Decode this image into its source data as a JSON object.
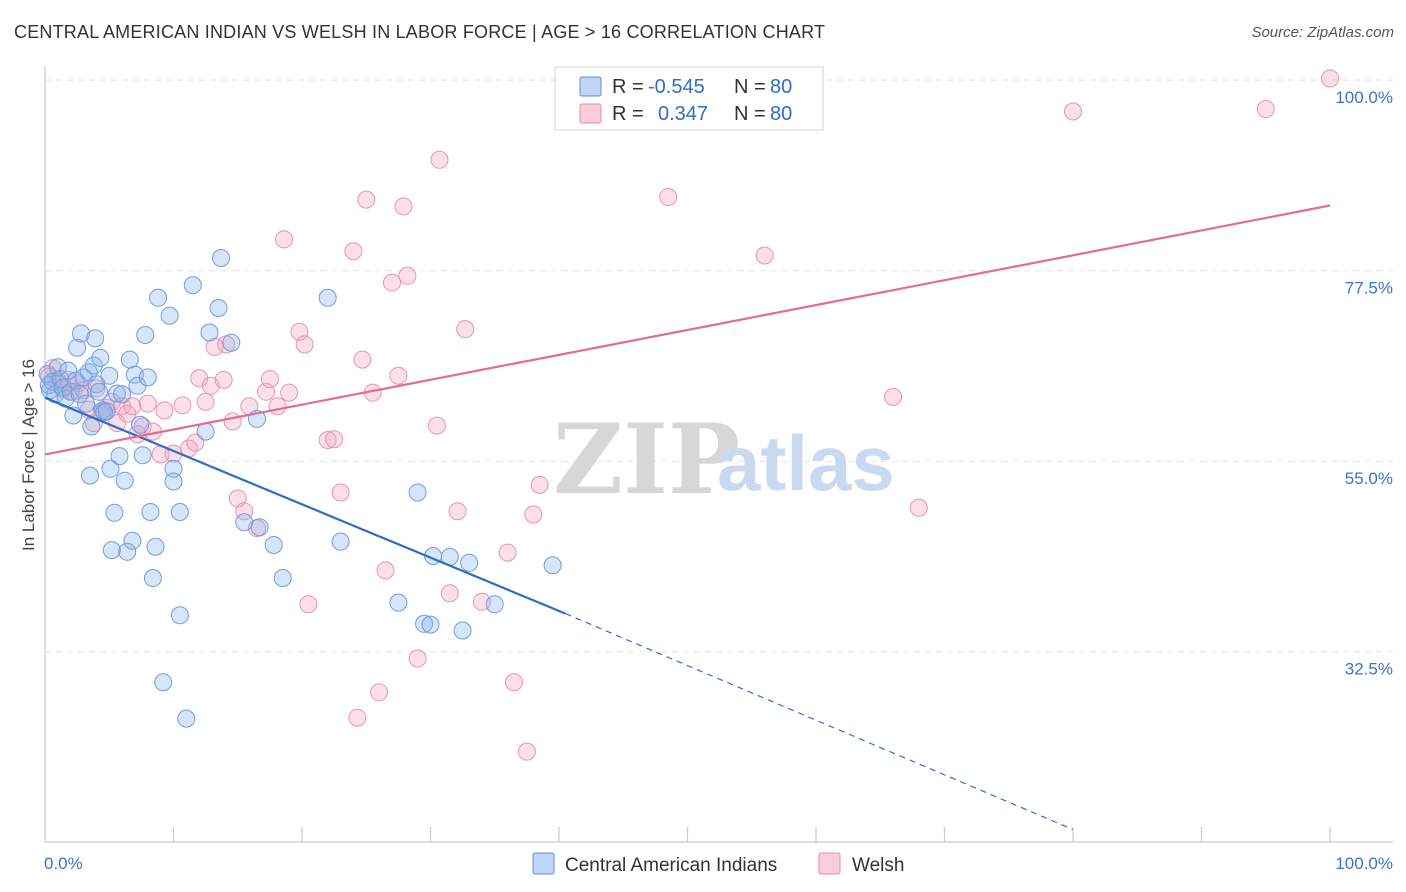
{
  "header": {
    "title": "CENTRAL AMERICAN INDIAN VS WELSH IN LABOR FORCE | AGE > 16 CORRELATION CHART",
    "source": "Source: ZipAtlas.com"
  },
  "watermark": {
    "zip": "ZIP",
    "atlas": "atlas"
  },
  "legend": {
    "rows": [
      {
        "r_label": "R =",
        "r_value": "-0.545",
        "n_label": "N =",
        "n_value": "80",
        "color": "#8db4ea"
      },
      {
        "r_label": "R =",
        "r_value": "0.347",
        "n_label": "N =",
        "n_value": "80",
        "color": "#f3a6c0"
      }
    ]
  },
  "bottom_legend": {
    "items": [
      {
        "label": "Central American Indians",
        "color": "#8db4ea"
      },
      {
        "label": "Welsh",
        "color": "#f3a6c0"
      }
    ]
  },
  "chart_data": {
    "type": "scatter",
    "title": "CENTRAL AMERICAN INDIAN VS WELSH IN LABOR FORCE | AGE > 16 CORRELATION CHART",
    "xlabel": "",
    "ylabel": "In Labor Force | Age > 16",
    "xlim": [
      0,
      100
    ],
    "ylim": [
      10,
      102
    ],
    "x_tick_labels": [
      {
        "value": 0,
        "label": "0.0%"
      },
      {
        "value": 100,
        "label": "100.0%"
      }
    ],
    "y_ticks": [
      {
        "value": 100,
        "label": "100.0%"
      },
      {
        "value": 77.5,
        "label": "77.5%"
      },
      {
        "value": 55,
        "label": "55.0%"
      },
      {
        "value": 32.5,
        "label": "32.5%"
      }
    ],
    "grid": true,
    "legend_placement": "top-center",
    "series": [
      {
        "name": "Central American Indians",
        "color": "#8db4ea",
        "line_color": "#2f6dc4",
        "trend": {
          "x0": 0,
          "y0": 62.5,
          "x1": 40.5,
          "y1": 37,
          "dashed_to_x": 80,
          "dashed_to_y": 11.5
        },
        "points": [
          [
            0.2,
            65.3
          ],
          [
            0.3,
            64
          ],
          [
            0.4,
            63.4
          ],
          [
            0.6,
            64.4
          ],
          [
            0.8,
            62.9
          ],
          [
            1,
            66.1
          ],
          [
            1.2,
            64.7
          ],
          [
            1.4,
            63.7
          ],
          [
            1.6,
            62.4
          ],
          [
            1.8,
            65.7
          ],
          [
            2,
            63.2
          ],
          [
            2.2,
            60.4
          ],
          [
            2.4,
            64.5
          ],
          [
            2.5,
            68.4
          ],
          [
            2.7,
            62.9
          ],
          [
            2.8,
            70.1
          ],
          [
            3,
            64.9
          ],
          [
            3.2,
            61.8
          ],
          [
            3.4,
            65.5
          ],
          [
            3.5,
            53.3
          ],
          [
            3.6,
            59.1
          ],
          [
            3.8,
            66.3
          ],
          [
            3.9,
            69.5
          ],
          [
            4,
            64.1
          ],
          [
            4.2,
            63.2
          ],
          [
            4.3,
            67.2
          ],
          [
            4.5,
            61
          ],
          [
            4.6,
            60.8
          ],
          [
            4.8,
            60.9
          ],
          [
            5,
            65.1
          ],
          [
            5.1,
            54.1
          ],
          [
            5.2,
            44.5
          ],
          [
            5.4,
            48.9
          ],
          [
            5.6,
            63
          ],
          [
            5.8,
            55.6
          ],
          [
            6,
            62.9
          ],
          [
            6.2,
            52.7
          ],
          [
            6.4,
            44.3
          ],
          [
            6.6,
            67
          ],
          [
            6.8,
            45.6
          ],
          [
            7,
            65.2
          ],
          [
            7.2,
            63.9
          ],
          [
            7.4,
            59.3
          ],
          [
            7.6,
            55.7
          ],
          [
            7.8,
            69.9
          ],
          [
            8,
            64.9
          ],
          [
            8.2,
            49
          ],
          [
            8.4,
            41.2
          ],
          [
            8.6,
            44.9
          ],
          [
            8.8,
            74.3
          ],
          [
            9.2,
            28.9
          ],
          [
            9.7,
            72.2
          ],
          [
            10,
            54.1
          ],
          [
            10,
            52.6
          ],
          [
            10.5,
            49
          ],
          [
            10.5,
            36.8
          ],
          [
            11,
            24.6
          ],
          [
            11.5,
            75.8
          ],
          [
            12.5,
            58.5
          ],
          [
            12.8,
            70.2
          ],
          [
            13.5,
            73.1
          ],
          [
            13.7,
            79
          ],
          [
            14.5,
            69
          ],
          [
            15.5,
            47.8
          ],
          [
            16.5,
            60
          ],
          [
            16.7,
            47.2
          ],
          [
            17.8,
            45.1
          ],
          [
            18.5,
            41.2
          ],
          [
            22,
            74.3
          ],
          [
            23,
            45.5
          ],
          [
            27.5,
            38.3
          ],
          [
            29,
            51.3
          ],
          [
            29.5,
            35.8
          ],
          [
            30,
            35.7
          ],
          [
            30.2,
            43.8
          ],
          [
            31.5,
            43.7
          ],
          [
            32.5,
            35
          ],
          [
            33,
            43
          ],
          [
            35,
            38.1
          ],
          [
            39.5,
            42.7
          ]
        ]
      },
      {
        "name": "Welsh",
        "color": "#f3a6c0",
        "line_color": "#e36b95",
        "trend": {
          "x0": 0,
          "y0": 55.8,
          "x1": 100,
          "y1": 85.2
        },
        "points": [
          [
            0.3,
            65
          ],
          [
            0.6,
            66
          ],
          [
            1,
            64.4
          ],
          [
            1.4,
            63.5
          ],
          [
            1.8,
            64.6
          ],
          [
            2.2,
            63.2
          ],
          [
            2.6,
            64.2
          ],
          [
            3,
            63.4
          ],
          [
            3.4,
            61.1
          ],
          [
            3.8,
            59.5
          ],
          [
            4,
            63.6
          ],
          [
            4.4,
            60.8
          ],
          [
            4.8,
            61.3
          ],
          [
            5.2,
            62
          ],
          [
            5.6,
            59.5
          ],
          [
            6,
            61.5
          ],
          [
            6.4,
            60.6
          ],
          [
            6.8,
            61.5
          ],
          [
            7.2,
            58.2
          ],
          [
            7.6,
            59.1
          ],
          [
            8,
            61.8
          ],
          [
            8.4,
            58.5
          ],
          [
            9,
            55.8
          ],
          [
            9.3,
            61
          ],
          [
            10,
            55.9
          ],
          [
            10.7,
            61.6
          ],
          [
            11.2,
            56.5
          ],
          [
            11.7,
            57.2
          ],
          [
            12,
            64.8
          ],
          [
            12.5,
            62
          ],
          [
            12.9,
            63.9
          ],
          [
            13.2,
            68.5
          ],
          [
            13.9,
            64.6
          ],
          [
            14.1,
            68.8
          ],
          [
            14.6,
            59.7
          ],
          [
            15,
            50.6
          ],
          [
            15.5,
            49.1
          ],
          [
            15.9,
            61.5
          ],
          [
            16.5,
            47.1
          ],
          [
            17.2,
            63.2
          ],
          [
            17.5,
            64.7
          ],
          [
            18.1,
            61.5
          ],
          [
            18.6,
            81.2
          ],
          [
            19,
            63.1
          ],
          [
            19.8,
            70.3
          ],
          [
            20.2,
            68.8
          ],
          [
            20.5,
            38.1
          ],
          [
            22,
            57.5
          ],
          [
            22.5,
            57.6
          ],
          [
            23,
            51.3
          ],
          [
            24,
            79.8
          ],
          [
            24.3,
            24.7
          ],
          [
            24.7,
            67
          ],
          [
            25,
            85.9
          ],
          [
            25.5,
            63.1
          ],
          [
            26,
            27.7
          ],
          [
            26.5,
            42.1
          ],
          [
            27,
            76.1
          ],
          [
            27.5,
            65.1
          ],
          [
            27.9,
            85.1
          ],
          [
            28.2,
            76.9
          ],
          [
            29,
            31.7
          ],
          [
            30.5,
            59.2
          ],
          [
            30.7,
            90.6
          ],
          [
            31.5,
            39.4
          ],
          [
            32.1,
            49.1
          ],
          [
            32.7,
            70.6
          ],
          [
            34,
            38.4
          ],
          [
            36,
            44.2
          ],
          [
            36.5,
            28.9
          ],
          [
            37.5,
            20.7
          ],
          [
            38,
            48.7
          ],
          [
            38.5,
            52.2
          ],
          [
            48.5,
            86.2
          ],
          [
            56,
            79.3
          ],
          [
            66,
            62.6
          ],
          [
            68,
            49.5
          ],
          [
            80,
            96.3
          ],
          [
            95,
            96.6
          ],
          [
            100,
            100.2
          ]
        ]
      }
    ],
    "top_points_note": []
  }
}
